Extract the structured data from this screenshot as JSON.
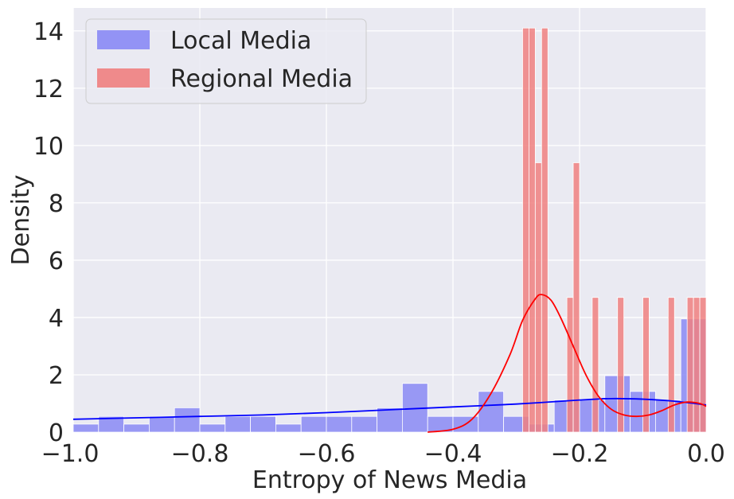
{
  "chart_data": {
    "type": "histogram",
    "xlabel": "Entropy of News Media",
    "ylabel": "Density",
    "xlim": [
      -1.0,
      0.0
    ],
    "ylim": [
      0,
      14.8
    ],
    "xticks": [
      -1.0,
      -0.8,
      -0.6,
      -0.4,
      -0.2,
      0.0
    ],
    "xtick_labels": [
      "−1.0",
      "−0.8",
      "−0.6",
      "−0.4",
      "−0.2",
      "0.0"
    ],
    "yticks": [
      0,
      2,
      4,
      6,
      8,
      10,
      12,
      14
    ],
    "ytick_labels": [
      "0",
      "2",
      "4",
      "6",
      "8",
      "10",
      "12",
      "14"
    ],
    "grid": true,
    "background_color": "#eaeaf2",
    "legend_position": "upper-left",
    "series": [
      {
        "name": "Local Media",
        "color": "#0000ff",
        "bar_color": "#8a8af5",
        "kde_color": "#0000ff",
        "bin_width": 0.04,
        "bins": [
          {
            "x0": -1.0,
            "x1": -0.96,
            "density": 0.28
          },
          {
            "x0": -0.96,
            "x1": -0.92,
            "density": 0.55
          },
          {
            "x0": -0.92,
            "x1": -0.88,
            "density": 0.28
          },
          {
            "x0": -0.88,
            "x1": -0.84,
            "density": 0.55
          },
          {
            "x0": -0.84,
            "x1": -0.8,
            "density": 0.85
          },
          {
            "x0": -0.8,
            "x1": -0.76,
            "density": 0.28
          },
          {
            "x0": -0.76,
            "x1": -0.72,
            "density": 0.55
          },
          {
            "x0": -0.72,
            "x1": -0.68,
            "density": 0.55
          },
          {
            "x0": -0.68,
            "x1": -0.64,
            "density": 0.28
          },
          {
            "x0": -0.64,
            "x1": -0.6,
            "density": 0.55
          },
          {
            "x0": -0.6,
            "x1": -0.56,
            "density": 0.55
          },
          {
            "x0": -0.56,
            "x1": -0.52,
            "density": 0.55
          },
          {
            "x0": -0.52,
            "x1": -0.48,
            "density": 0.85
          },
          {
            "x0": -0.48,
            "x1": -0.44,
            "density": 1.7
          },
          {
            "x0": -0.44,
            "x1": -0.4,
            "density": 0.55
          },
          {
            "x0": -0.4,
            "x1": -0.36,
            "density": 0.55
          },
          {
            "x0": -0.36,
            "x1": -0.32,
            "density": 1.42
          },
          {
            "x0": -0.32,
            "x1": -0.28,
            "density": 0.55
          },
          {
            "x0": -0.28,
            "x1": -0.24,
            "density": 0.28
          },
          {
            "x0": -0.24,
            "x1": -0.2,
            "density": 1.12
          },
          {
            "x0": -0.2,
            "x1": -0.16,
            "density": 1.12
          },
          {
            "x0": -0.16,
            "x1": -0.12,
            "density": 1.97
          },
          {
            "x0": -0.12,
            "x1": -0.08,
            "density": 1.42
          },
          {
            "x0": -0.08,
            "x1": -0.04,
            "density": 1.12
          },
          {
            "x0": -0.04,
            "x1": 0.0,
            "density": 3.95
          }
        ],
        "kde": {
          "x": [
            -1.0,
            -0.9,
            -0.8,
            -0.7,
            -0.6,
            -0.5,
            -0.4,
            -0.3,
            -0.2,
            -0.15,
            -0.1,
            -0.05,
            0.0
          ],
          "y": [
            0.45,
            0.5,
            0.55,
            0.6,
            0.68,
            0.78,
            0.88,
            0.98,
            1.12,
            1.17,
            1.15,
            1.08,
            0.95
          ]
        }
      },
      {
        "name": "Regional Media",
        "color": "#ff0000",
        "bar_color": "#f08080",
        "kde_color": "#ff0000",
        "bin_width": 0.01,
        "bins": [
          {
            "x0": -0.29,
            "x1": -0.28,
            "density": 14.1
          },
          {
            "x0": -0.28,
            "x1": -0.27,
            "density": 14.1
          },
          {
            "x0": -0.27,
            "x1": -0.26,
            "density": 9.4
          },
          {
            "x0": -0.26,
            "x1": -0.25,
            "density": 14.1
          },
          {
            "x0": -0.22,
            "x1": -0.21,
            "density": 4.7
          },
          {
            "x0": -0.21,
            "x1": -0.2,
            "density": 9.4
          },
          {
            "x0": -0.18,
            "x1": -0.17,
            "density": 4.7
          },
          {
            "x0": -0.14,
            "x1": -0.13,
            "density": 4.7
          },
          {
            "x0": -0.1,
            "x1": -0.09,
            "density": 4.7
          },
          {
            "x0": -0.06,
            "x1": -0.05,
            "density": 4.7
          },
          {
            "x0": -0.03,
            "x1": -0.02,
            "density": 4.7
          },
          {
            "x0": -0.02,
            "x1": -0.01,
            "density": 4.7
          },
          {
            "x0": -0.01,
            "x1": 0.0,
            "density": 4.7
          }
        ],
        "kde": {
          "x": [
            -0.44,
            -0.4,
            -0.37,
            -0.34,
            -0.31,
            -0.29,
            -0.27,
            -0.26,
            -0.245,
            -0.23,
            -0.21,
            -0.19,
            -0.17,
            -0.15,
            -0.13,
            -0.11,
            -0.09,
            -0.07,
            -0.05,
            -0.03,
            -0.01,
            0.0
          ],
          "y": [
            0.0,
            0.1,
            0.45,
            1.35,
            2.7,
            3.9,
            4.65,
            4.8,
            4.6,
            4.0,
            3.0,
            2.0,
            1.25,
            0.8,
            0.6,
            0.55,
            0.6,
            0.75,
            0.95,
            1.05,
            1.0,
            0.9
          ]
        }
      }
    ]
  }
}
